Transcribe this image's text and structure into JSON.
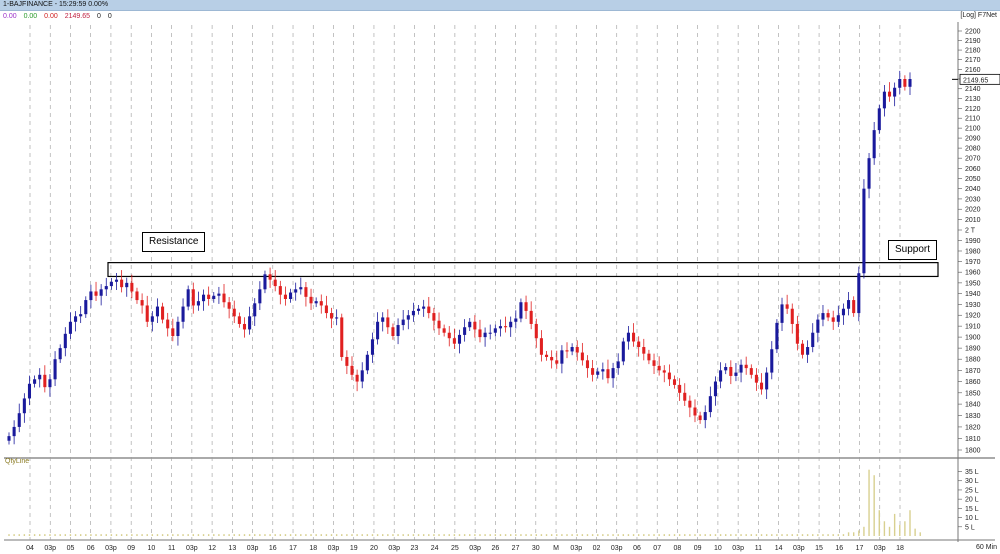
{
  "window": {
    "title": "1-BAJFINANCE - 15:29:59 0.00%"
  },
  "header": {
    "values": [
      {
        "text": "0.00",
        "color": "#9b30c8"
      },
      {
        "text": "0.00",
        "color": "#2a9a2a"
      },
      {
        "text": "0.00",
        "color": "#d02020"
      },
      {
        "text": "2149.65",
        "color": "#c02040"
      },
      {
        "text": "0",
        "color": "#222222"
      },
      {
        "text": "0",
        "color": "#222222"
      }
    ],
    "scale_tag": "[Log] F7Net"
  },
  "qty_label": "QtyLine",
  "timeframe": "60 Min",
  "annotations": {
    "resistance": "Resistance",
    "support": "Support"
  },
  "colors": {
    "up": "#1a1a9c",
    "down": "#e02020",
    "volume": "#d8d090",
    "grid": "#9a9a9a"
  },
  "chart_data": {
    "type": "candlestick",
    "scale": "log",
    "ylim": [
      1800,
      2200
    ],
    "y_ticks": [
      1800,
      1810,
      1820,
      1830,
      1840,
      1850,
      1860,
      1870,
      1880,
      1890,
      1900,
      1910,
      1920,
      1930,
      1940,
      1950,
      1960,
      1970,
      1980,
      1990,
      2000,
      2010,
      2020,
      2030,
      2040,
      2050,
      2060,
      2070,
      2080,
      2090,
      2100,
      2110,
      2120,
      2130,
      2140,
      2150,
      2160,
      2170,
      2180,
      2190,
      2200
    ],
    "y_tick_labels": [
      "1800",
      "1810",
      "1820",
      "1830",
      "1840",
      "1850",
      "1860",
      "1870",
      "1880",
      "1890",
      "1900",
      "1910",
      "1920",
      "1930",
      "1940",
      "1950",
      "1960",
      "1970",
      "1980",
      "1990",
      "2 T",
      "2010",
      "2020",
      "2030",
      "2040",
      "2050",
      "2060",
      "2070",
      "2080",
      "2090",
      "2100",
      "2110",
      "2120",
      "2130",
      "2140",
      "2150",
      "2160",
      "2170",
      "2180",
      "2190",
      "2200"
    ],
    "last_price": "2149.65",
    "x_labels": [
      "04",
      "03p",
      "05",
      "06",
      "03p",
      "09",
      "10",
      "11",
      "03p",
      "12",
      "13",
      "03p",
      "16",
      "17",
      "18",
      "03p",
      "19",
      "20",
      "03p",
      "23",
      "24",
      "25",
      "03p",
      "26",
      "27",
      "30",
      "M",
      "03p",
      "02",
      "03p",
      "06",
      "07",
      "08",
      "09",
      "10",
      "03p",
      "11",
      "14",
      "03p",
      "15",
      "16",
      "17",
      "03p",
      "18"
    ],
    "resistance_zone": [
      1956,
      1969
    ],
    "closes": [
      1812,
      1820,
      1832,
      1845,
      1858,
      1862,
      1866,
      1855,
      1862,
      1880,
      1890,
      1903,
      1914,
      1919,
      1921,
      1934,
      1942,
      1938,
      1944,
      1947,
      1951,
      1953,
      1946,
      1950,
      1942,
      1934,
      1929,
      1914,
      1919,
      1928,
      1916,
      1908,
      1901,
      1914,
      1928,
      1944,
      1929,
      1933,
      1939,
      1935,
      1938,
      1940,
      1932,
      1926,
      1919,
      1912,
      1907,
      1919,
      1931,
      1944,
      1958,
      1953,
      1947,
      1939,
      1935,
      1941,
      1944,
      1946,
      1937,
      1931,
      1933,
      1929,
      1922,
      1917,
      1918,
      1882,
      1874,
      1866,
      1860,
      1870,
      1884,
      1898,
      1914,
      1918,
      1909,
      1901,
      1911,
      1916,
      1920,
      1924,
      1926,
      1928,
      1922,
      1915,
      1908,
      1904,
      1899,
      1894,
      1902,
      1909,
      1914,
      1907,
      1900,
      1904,
      1904,
      1908,
      1910,
      1909,
      1914,
      1917,
      1932,
      1924,
      1912,
      1899,
      1884,
      1882,
      1879,
      1876,
      1888,
      1887,
      1891,
      1886,
      1879,
      1872,
      1866,
      1869,
      1871,
      1863,
      1872,
      1878,
      1896,
      1904,
      1896,
      1891,
      1885,
      1879,
      1874,
      1870,
      1868,
      1862,
      1857,
      1850,
      1843,
      1837,
      1830,
      1826,
      1833,
      1847,
      1860,
      1870,
      1873,
      1865,
      1868,
      1875,
      1872,
      1866,
      1859,
      1853,
      1868,
      1889,
      1913,
      1930,
      1926,
      1912,
      1894,
      1884,
      1891,
      1904,
      1916,
      1922,
      1918,
      1914,
      1920,
      1926,
      1934,
      1922,
      1959,
      2040,
      2070,
      2098,
      2120,
      2137,
      2132,
      2141,
      2150,
      2142,
      2150
    ],
    "volume": [
      1,
      1,
      1,
      1,
      1,
      1,
      1,
      1,
      1,
      1,
      1,
      1,
      1,
      1,
      1,
      1,
      1,
      1,
      1,
      1,
      1,
      1,
      1,
      1,
      1,
      1,
      1,
      1,
      1,
      1,
      1,
      1,
      1,
      1,
      1,
      1,
      1,
      1,
      1,
      1,
      1,
      1,
      1,
      1,
      1,
      1,
      1,
      1,
      1,
      1,
      1,
      1,
      1,
      1,
      1,
      1,
      1,
      1,
      1,
      1,
      1,
      1,
      1,
      1,
      1,
      1,
      1,
      1,
      1,
      1,
      1,
      1,
      1,
      1,
      1,
      1,
      1,
      1,
      1,
      1,
      1,
      1,
      1,
      1,
      1,
      1,
      1,
      1,
      1,
      1,
      1,
      1,
      1,
      1,
      1,
      1,
      1,
      1,
      1,
      1,
      1,
      1,
      1,
      1,
      1,
      1,
      1,
      1,
      1,
      1,
      1,
      1,
      1,
      1,
      1,
      1,
      1,
      1,
      1,
      1,
      1,
      1,
      1,
      1,
      1,
      1,
      1,
      1,
      1,
      1,
      1,
      1,
      1,
      1,
      1,
      1,
      1,
      1,
      1,
      1,
      1,
      1,
      1,
      1,
      1,
      1,
      1,
      1,
      1,
      1,
      1,
      1,
      1,
      1,
      1,
      1,
      1,
      1,
      1,
      1,
      1,
      1,
      1,
      1,
      2,
      2,
      3,
      5,
      36,
      33,
      14,
      8,
      5,
      12,
      6,
      8,
      14,
      4,
      2
    ],
    "volume_ticks": [
      5,
      10,
      15,
      20,
      25,
      30,
      35
    ],
    "volume_tick_labels": [
      "5 L",
      "10 L",
      "15 L",
      "20 L",
      "25 L",
      "30 L",
      "35 L"
    ]
  }
}
